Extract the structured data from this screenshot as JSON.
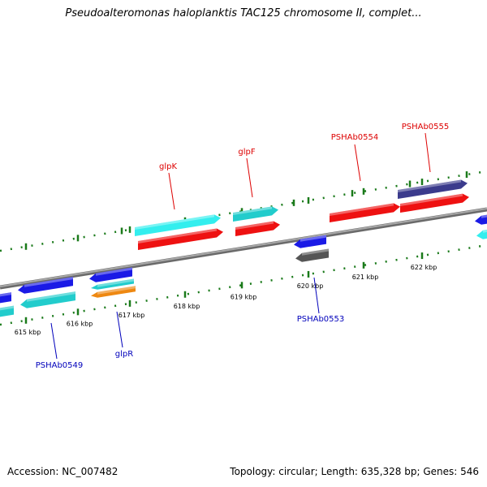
{
  "title": "Pseudoalteromonas haloplanktis TAC125 chromosome II, complet...",
  "accession_text": "Accession: NC_007482",
  "topology_text": "Topology: circular; Length: 635,328 bp; Genes: 546",
  "colors": {
    "backbone": "#888888",
    "forward_label": "#dd0000",
    "reverse_label": "#0000bb",
    "tick": "#1a7a1a",
    "red_gene": "#ee1111",
    "cyan_gene": "#22cccc",
    "blue_gene": "#1a1ae6",
    "navy_gene": "#3b3b8c",
    "gray_gene": "#555555",
    "orange_gene": "#ee8811",
    "light_cyan_gene": "#33eeee"
  },
  "scale_labels": [
    "615 kbp",
    "616 kbp",
    "617 kbp",
    "618 kbp",
    "619 kbp",
    "620 kbp",
    "621 kbp",
    "622 kbp"
  ],
  "forward_genes": [
    {
      "label": "glpK"
    },
    {
      "label": "glpF"
    },
    {
      "label": "PSHAb0554"
    },
    {
      "label": "PSHAb0555"
    }
  ],
  "reverse_genes": [
    {
      "label": "PSHAb0549"
    },
    {
      "label": "glpR"
    },
    {
      "label": "PSHAb0553"
    }
  ]
}
